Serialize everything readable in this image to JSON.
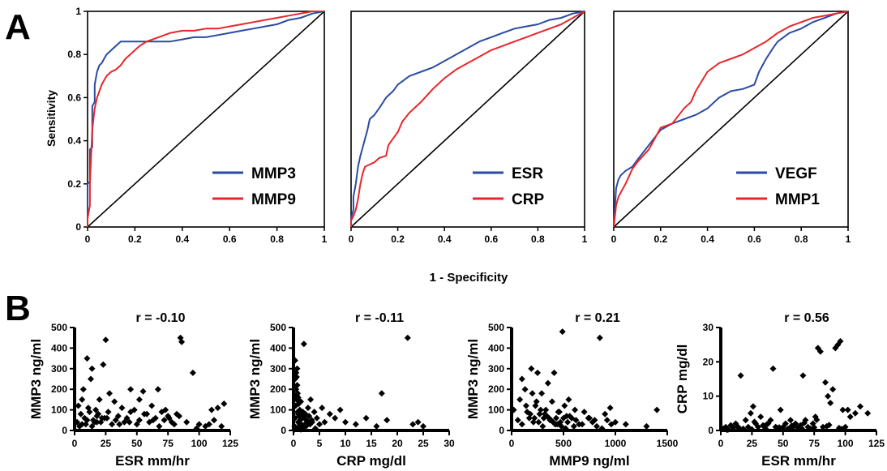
{
  "panels": {
    "a_label": "A",
    "b_label": "B"
  },
  "colors": {
    "blue": "#2B4BA1",
    "red": "#E8262B",
    "black": "#000000"
  },
  "roc_shared": {
    "ylabel": "Sensitivity",
    "xlabel": "1 - Specificity"
  },
  "chart_data": [
    {
      "type": "line",
      "panel": "A1",
      "xlim": [
        0,
        1
      ],
      "ylim": [
        0,
        1
      ],
      "xticks": [
        0,
        0.2,
        0.4,
        0.6,
        0.8,
        1
      ],
      "yticks": [
        0,
        0.2,
        0.4,
        0.6,
        0.8,
        1
      ],
      "xticklabels": [
        "0",
        "0.2",
        "0.4",
        "0.6",
        "0.8",
        "1"
      ],
      "yticklabels": [
        "0",
        "0.2",
        "0.4",
        "0.6",
        "0.8",
        "1"
      ],
      "ylabel": "Sensitivity",
      "xlabel": "",
      "legend": "bottom-right",
      "series": [
        {
          "name": "MMP3",
          "color": "#2B4BA1",
          "x": [
            0,
            0,
            0.01,
            0.01,
            0.02,
            0.02,
            0.03,
            0.03,
            0.04,
            0.05,
            0.06,
            0.07,
            0.08,
            0.1,
            0.12,
            0.14,
            0.16,
            0.18,
            0.2,
            0.25,
            0.3,
            0.35,
            0.4,
            0.45,
            0.5,
            0.55,
            0.6,
            0.65,
            0.7,
            0.75,
            0.8,
            0.85,
            0.9,
            0.95,
            1
          ],
          "y": [
            0,
            0.2,
            0.21,
            0.36,
            0.37,
            0.56,
            0.58,
            0.66,
            0.72,
            0.75,
            0.76,
            0.78,
            0.8,
            0.82,
            0.84,
            0.86,
            0.86,
            0.86,
            0.86,
            0.86,
            0.86,
            0.86,
            0.87,
            0.88,
            0.88,
            0.89,
            0.9,
            0.91,
            0.92,
            0.93,
            0.94,
            0.96,
            0.97,
            0.99,
            1
          ]
        },
        {
          "name": "MMP9",
          "color": "#E8262B",
          "x": [
            0,
            0,
            0.01,
            0.01,
            0.02,
            0.03,
            0.04,
            0.05,
            0.06,
            0.07,
            0.08,
            0.1,
            0.12,
            0.14,
            0.16,
            0.18,
            0.2,
            0.22,
            0.25,
            0.3,
            0.35,
            0.4,
            0.45,
            0.5,
            0.55,
            0.6,
            0.65,
            0.7,
            0.75,
            0.8,
            0.85,
            0.9,
            0.95,
            1
          ],
          "y": [
            0,
            0.04,
            0.1,
            0.2,
            0.45,
            0.55,
            0.6,
            0.63,
            0.66,
            0.68,
            0.7,
            0.72,
            0.73,
            0.75,
            0.78,
            0.8,
            0.82,
            0.84,
            0.86,
            0.88,
            0.9,
            0.91,
            0.91,
            0.92,
            0.92,
            0.93,
            0.94,
            0.95,
            0.96,
            0.97,
            0.98,
            0.99,
            1,
            1
          ]
        }
      ]
    },
    {
      "type": "line",
      "panel": "A2",
      "xlim": [
        0,
        1
      ],
      "ylim": [
        0,
        1
      ],
      "xticks": [
        0,
        0.2,
        0.4,
        0.6,
        0.8,
        1
      ],
      "xticklabels": [
        "0",
        "0.2",
        "0.4",
        "0.6",
        "0.8",
        "1"
      ],
      "legend": "bottom-right",
      "series": [
        {
          "name": "ESR",
          "color": "#2B4BA1",
          "x": [
            0,
            0,
            0.01,
            0.01,
            0.02,
            0.03,
            0.04,
            0.05,
            0.06,
            0.07,
            0.08,
            0.1,
            0.12,
            0.15,
            0.18,
            0.2,
            0.25,
            0.3,
            0.35,
            0.4,
            0.45,
            0.5,
            0.55,
            0.6,
            0.65,
            0.7,
            0.75,
            0.8,
            0.85,
            0.9,
            0.95,
            1
          ],
          "y": [
            0,
            0.04,
            0.08,
            0.14,
            0.2,
            0.28,
            0.33,
            0.37,
            0.41,
            0.45,
            0.5,
            0.52,
            0.55,
            0.6,
            0.63,
            0.66,
            0.7,
            0.72,
            0.74,
            0.77,
            0.8,
            0.83,
            0.86,
            0.88,
            0.9,
            0.92,
            0.93,
            0.94,
            0.96,
            0.97,
            0.99,
            1
          ]
        },
        {
          "name": "CRP",
          "color": "#E8262B",
          "x": [
            0,
            0,
            0.01,
            0.02,
            0.03,
            0.04,
            0.05,
            0.06,
            0.08,
            0.1,
            0.12,
            0.15,
            0.16,
            0.18,
            0.2,
            0.22,
            0.25,
            0.3,
            0.35,
            0.4,
            0.45,
            0.5,
            0.55,
            0.6,
            0.65,
            0.7,
            0.75,
            0.8,
            0.85,
            0.9,
            0.95,
            1
          ],
          "y": [
            0,
            0.03,
            0.05,
            0.08,
            0.13,
            0.2,
            0.25,
            0.28,
            0.29,
            0.3,
            0.32,
            0.33,
            0.38,
            0.41,
            0.44,
            0.49,
            0.53,
            0.58,
            0.64,
            0.69,
            0.73,
            0.76,
            0.79,
            0.82,
            0.84,
            0.86,
            0.88,
            0.9,
            0.92,
            0.94,
            0.97,
            1
          ]
        }
      ]
    },
    {
      "type": "line",
      "panel": "A3",
      "xlim": [
        0,
        1
      ],
      "ylim": [
        0,
        1
      ],
      "xticks": [
        0,
        0.2,
        0.4,
        0.6,
        0.8,
        1
      ],
      "xticklabels": [
        "0",
        "0.2",
        "0.4",
        "0.6",
        "0.8",
        "1"
      ],
      "legend": "bottom-right",
      "series": [
        {
          "name": "VEGF",
          "color": "#2B4BA1",
          "x": [
            0,
            0.01,
            0.02,
            0.03,
            0.05,
            0.08,
            0.1,
            0.15,
            0.2,
            0.25,
            0.3,
            0.35,
            0.4,
            0.45,
            0.5,
            0.55,
            0.6,
            0.62,
            0.65,
            0.68,
            0.7,
            0.75,
            0.8,
            0.85,
            0.9,
            0.95,
            1
          ],
          "y": [
            0,
            0.18,
            0.22,
            0.24,
            0.26,
            0.28,
            0.31,
            0.38,
            0.45,
            0.48,
            0.5,
            0.52,
            0.55,
            0.6,
            0.63,
            0.64,
            0.66,
            0.72,
            0.78,
            0.83,
            0.86,
            0.9,
            0.92,
            0.95,
            0.97,
            0.99,
            1
          ]
        },
        {
          "name": "MMP1",
          "color": "#E8262B",
          "x": [
            0,
            0.01,
            0.02,
            0.03,
            0.05,
            0.08,
            0.1,
            0.15,
            0.2,
            0.25,
            0.3,
            0.33,
            0.35,
            0.4,
            0.45,
            0.5,
            0.55,
            0.6,
            0.65,
            0.7,
            0.75,
            0.8,
            0.85,
            0.9,
            0.95,
            1
          ],
          "y": [
            0,
            0.1,
            0.14,
            0.16,
            0.2,
            0.27,
            0.3,
            0.36,
            0.46,
            0.48,
            0.55,
            0.58,
            0.63,
            0.72,
            0.76,
            0.78,
            0.8,
            0.83,
            0.86,
            0.9,
            0.93,
            0.95,
            0.97,
            0.98,
            0.99,
            1
          ]
        }
      ]
    },
    {
      "type": "scatter",
      "panel": "B1",
      "title": "r = -0.10",
      "xlabel": "ESR mm/hr",
      "ylabel": "MMP3 ng/ml",
      "xlim": [
        0,
        125
      ],
      "ylim": [
        0,
        500
      ],
      "xticks": [
        0,
        25,
        50,
        75,
        100,
        125
      ],
      "yticks": [
        0,
        100,
        200,
        300,
        400,
        500
      ],
      "x": [
        2,
        3,
        5,
        6,
        8,
        10,
        12,
        14,
        16,
        18,
        20,
        22,
        25,
        7,
        9,
        11,
        13,
        15,
        17,
        19,
        21,
        24,
        27,
        30,
        33,
        35,
        38,
        40,
        42,
        45,
        48,
        50,
        52,
        55,
        58,
        60,
        62,
        65,
        68,
        70,
        72,
        75,
        78,
        80,
        82,
        85,
        95,
        100,
        105,
        110,
        115,
        118,
        120,
        23,
        28,
        32,
        45,
        52,
        67,
        73,
        84,
        86,
        98,
        4,
        6,
        10,
        14,
        18,
        26,
        36,
        44,
        56,
        63,
        76,
        90,
        108,
        112
      ],
      "y": [
        40,
        120,
        80,
        150,
        60,
        350,
        90,
        300,
        40,
        70,
        150,
        60,
        440,
        200,
        30,
        110,
        250,
        50,
        100,
        80,
        40,
        60,
        90,
        30,
        50,
        70,
        110,
        40,
        60,
        90,
        100,
        30,
        50,
        190,
        80,
        40,
        120,
        60,
        20,
        90,
        50,
        70,
        40,
        30,
        80,
        450,
        280,
        30,
        20,
        100,
        110,
        20,
        130,
        320,
        180,
        140,
        200,
        150,
        200,
        100,
        70,
        430,
        10,
        20,
        30,
        50,
        20,
        40,
        60,
        30,
        40,
        80,
        50,
        60,
        40,
        30,
        50
      ]
    },
    {
      "type": "scatter",
      "panel": "B2",
      "title": "r = -0.11",
      "xlabel": "CRP mg/dl",
      "ylabel": "MMP3 ng/ml",
      "xlim": [
        0,
        30
      ],
      "ylim": [
        0,
        500
      ],
      "xticks": [
        0,
        5,
        10,
        15,
        20,
        25,
        30
      ],
      "yticks": [
        0,
        100,
        200,
        300,
        400,
        500
      ],
      "x": [
        0.2,
        0.3,
        0.4,
        0.5,
        0.6,
        0.7,
        0.8,
        0.9,
        1,
        1.2,
        1.4,
        1.6,
        1.8,
        2,
        2.2,
        2.5,
        2.8,
        3,
        3.3,
        3.6,
        4,
        4.5,
        5,
        5.5,
        6,
        7,
        8,
        9,
        10,
        12,
        14,
        16,
        17,
        18,
        22,
        23,
        24,
        25,
        0.3,
        0.5,
        0.7,
        0.9,
        1.1,
        1.3,
        1.5,
        1.7,
        2.1,
        2.4,
        2.7,
        3.2,
        0.4,
        0.6,
        0.8,
        1.0,
        1.2,
        1.5,
        2.0,
        2.3,
        3.5,
        4.2,
        0.2,
        0.5,
        1.0,
        1.4,
        0.3,
        0.6,
        0.9
      ],
      "y": [
        20,
        60,
        120,
        200,
        260,
        300,
        180,
        80,
        40,
        100,
        140,
        60,
        90,
        420,
        30,
        50,
        110,
        70,
        150,
        40,
        90,
        60,
        30,
        110,
        40,
        80,
        60,
        100,
        40,
        30,
        60,
        20,
        180,
        50,
        450,
        30,
        40,
        20,
        340,
        280,
        220,
        160,
        70,
        50,
        30,
        80,
        60,
        20,
        40,
        30,
        10,
        150,
        90,
        130,
        30,
        60,
        20,
        80,
        50,
        10,
        5,
        10,
        15,
        5,
        250,
        170,
        40
      ]
    },
    {
      "type": "scatter",
      "panel": "B3",
      "title": "r = 0.21",
      "xlabel": "MMP9 ng/ml",
      "ylabel": "MMP3 ng/ml",
      "xlim": [
        0,
        1500
      ],
      "ylim": [
        0,
        500
      ],
      "xticks": [
        0,
        500,
        1000,
        1500
      ],
      "yticks": [
        0,
        100,
        200,
        300,
        400,
        500
      ],
      "x": [
        20,
        60,
        80,
        100,
        130,
        150,
        170,
        190,
        210,
        230,
        250,
        270,
        290,
        310,
        330,
        350,
        370,
        390,
        410,
        430,
        450,
        470,
        490,
        510,
        530,
        550,
        580,
        610,
        650,
        700,
        750,
        800,
        850,
        900,
        950,
        1000,
        1100,
        1300,
        1400,
        100,
        140,
        180,
        220,
        260,
        300,
        340,
        380,
        420,
        460,
        500,
        540,
        600,
        200,
        240,
        280,
        320,
        360,
        400,
        440,
        480,
        520,
        560,
        620,
        680,
        740,
        780,
        820,
        870,
        920,
        960
      ],
      "y": [
        100,
        50,
        150,
        30,
        200,
        90,
        60,
        300,
        40,
        120,
        280,
        80,
        180,
        60,
        100,
        230,
        50,
        140,
        280,
        60,
        90,
        40,
        480,
        120,
        70,
        150,
        60,
        100,
        30,
        90,
        60,
        50,
        450,
        80,
        110,
        40,
        30,
        20,
        100,
        250,
        120,
        80,
        60,
        40,
        20,
        70,
        50,
        30,
        90,
        60,
        40,
        20,
        180,
        140,
        100,
        80,
        60,
        40,
        30,
        20,
        10,
        70,
        50,
        30,
        60,
        40,
        20,
        10,
        50,
        30
      ]
    },
    {
      "type": "scatter",
      "panel": "B4",
      "title": "r = 0.56",
      "xlabel": "ESR mm/hr",
      "ylabel": "CRP mg/dl",
      "xlim": [
        0,
        125
      ],
      "ylim": [
        0,
        30
      ],
      "xticks": [
        0,
        25,
        50,
        75,
        100,
        125
      ],
      "yticks": [
        0,
        10,
        20,
        30
      ],
      "x": [
        2,
        4,
        6,
        8,
        10,
        12,
        14,
        16,
        18,
        20,
        22,
        24,
        26,
        28,
        30,
        32,
        34,
        36,
        38,
        40,
        42,
        44,
        46,
        48,
        50,
        52,
        54,
        56,
        58,
        60,
        62,
        64,
        66,
        68,
        70,
        72,
        74,
        76,
        78,
        80,
        82,
        84,
        86,
        88,
        90,
        92,
        94,
        96,
        98,
        100,
        102,
        104,
        108,
        112,
        118,
        15,
        25,
        35,
        45,
        55,
        65,
        75,
        85,
        95,
        5,
        27,
        37,
        47,
        57,
        67,
        77,
        87,
        97
      ],
      "y": [
        0.5,
        1,
        0.3,
        1.5,
        0.8,
        2,
        1,
        16,
        0.5,
        3,
        1,
        5,
        7,
        2,
        1,
        4,
        1.5,
        0.5,
        2,
        3,
        18,
        1,
        0.5,
        6,
        1,
        2,
        0.5,
        3,
        1,
        2,
        0.8,
        1.5,
        16,
        3,
        1,
        0.5,
        2,
        4,
        24,
        23,
        1,
        14,
        10,
        8,
        12,
        24,
        25,
        26,
        6,
        1,
        6,
        4,
        5,
        7,
        5,
        0.5,
        0.3,
        1,
        0.8,
        0.5,
        0.6,
        0.9,
        1.2,
        0.7,
        0.2,
        2.5,
        1.8,
        0.9,
        1.4,
        2.2,
        3.1,
        1.6,
        0.4
      ]
    }
  ]
}
